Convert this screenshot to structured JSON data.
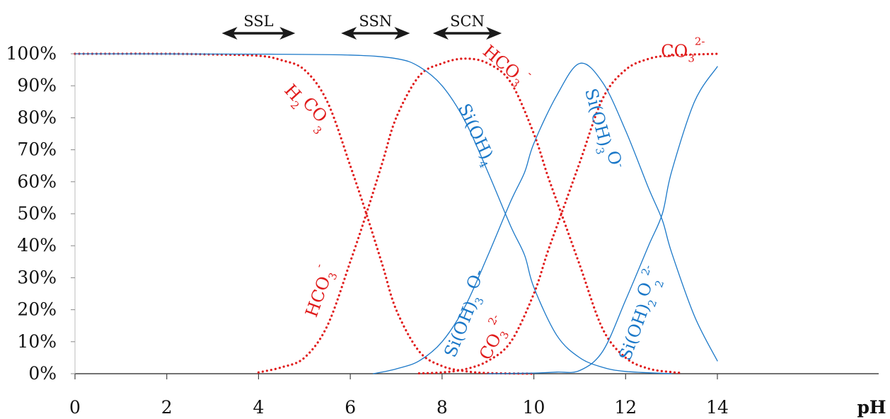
{
  "chart_data": {
    "type": "line",
    "xlabel": "pH",
    "ylabel": "",
    "xlim": [
      0,
      14
    ],
    "ylim": [
      0,
      100
    ],
    "x_ticks": [
      "0",
      "2",
      "4",
      "6",
      "8",
      "10",
      "12",
      "14"
    ],
    "y_ticks": [
      "0%",
      "10%",
      "20%",
      "30%",
      "40%",
      "50%",
      "60%",
      "70%",
      "80%",
      "90%",
      "100%"
    ],
    "regions": [
      {
        "label": "SSL",
        "x_start": 3.2,
        "x_end": 4.8
      },
      {
        "label": "SSN",
        "x_start": 5.8,
        "x_end": 7.3
      },
      {
        "label": "SCN",
        "x_start": 7.8,
        "x_end": 9.3
      }
    ],
    "series": [
      {
        "name": "H2CO3",
        "family": "carbonate",
        "color": "#e01b1b",
        "style": "dotted",
        "x": [
          0,
          2,
          3,
          4,
          4.5,
          5,
          5.5,
          6,
          6.35,
          6.7,
          7,
          7.5,
          8,
          8.5,
          9,
          10
        ],
        "y": [
          100,
          100,
          99.8,
          99.4,
          98,
          95,
          85,
          65,
          50,
          34,
          20,
          7,
          2.4,
          0.8,
          0.2,
          0
        ]
      },
      {
        "name": "HCO3-",
        "family": "carbonate",
        "color": "#e01b1b",
        "style": "dotted",
        "x": [
          4,
          4.5,
          5,
          5.5,
          6,
          6.35,
          6.7,
          7,
          7.5,
          8,
          8.5,
          9,
          9.5,
          10,
          10.3,
          10.6,
          11,
          11.5,
          12,
          12.5,
          13,
          13.2
        ],
        "y": [
          0.4,
          2,
          5,
          15,
          35,
          50,
          66,
          80,
          93,
          97,
          98.5,
          97,
          91,
          75,
          62,
          50,
          34,
          14,
          5,
          1.6,
          0.5,
          0.3
        ]
      },
      {
        "name": "CO3 2-",
        "family": "carbonate",
        "color": "#e01b1b",
        "style": "dotted",
        "x": [
          7.5,
          8,
          8.5,
          9,
          9.5,
          10,
          10.3,
          10.6,
          11,
          11.5,
          12,
          12.5,
          13,
          14
        ],
        "y": [
          0.1,
          0.4,
          1.4,
          4,
          10,
          25,
          38,
          50,
          66,
          86,
          95,
          98.4,
          99.5,
          100
        ]
      },
      {
        "name": "Si(OH)4",
        "family": "silicate",
        "color": "#1b78c8",
        "style": "solid",
        "x": [
          0,
          4,
          6,
          7,
          7.5,
          8,
          8.5,
          9,
          9.5,
          9.8,
          10,
          10.5,
          11,
          11.5,
          12,
          13
        ],
        "y": [
          100,
          99.9,
          99.6,
          98.5,
          96,
          90,
          79,
          63,
          46,
          37,
          27,
          12,
          5,
          2,
          0.7,
          0
        ]
      },
      {
        "name": "Si(OH)3O-",
        "family": "silicate",
        "color": "#1b78c8",
        "style": "solid",
        "x": [
          6.5,
          7,
          7.5,
          8,
          8.5,
          9,
          9.5,
          9.8,
          10,
          10.5,
          11,
          11.5,
          12,
          12.5,
          12.8,
          13,
          13.5,
          14
        ],
        "y": [
          0,
          1.5,
          4,
          10,
          21,
          37,
          54,
          63,
          72,
          87,
          97,
          91,
          76,
          58,
          48,
          38,
          18,
          4
        ]
      },
      {
        "name": "Si(OH)2O2 2-",
        "family": "silicate",
        "color": "#1b78c8",
        "style": "solid",
        "x": [
          9,
          10,
          10.5,
          11,
          11.5,
          12,
          12.5,
          12.8,
          13,
          13.5,
          14
        ],
        "y": [
          0,
          0.2,
          0.5,
          1,
          7,
          23,
          40,
          50,
          63,
          85,
          96
        ]
      }
    ],
    "annotations": [
      {
        "main": "H",
        "sub": "2",
        "rest": "CO",
        "sub2": "3",
        "sup": "",
        "color": "#e01b1b",
        "x": 4.95,
        "y": 82,
        "rotate": 48
      },
      {
        "main": "HCO",
        "sub": "3",
        "rest": "",
        "sub2": "",
        "sup": "-",
        "color": "#e01b1b",
        "x": 5.45,
        "y": 25,
        "rotate": -70
      },
      {
        "main": "HCO",
        "sub": "3",
        "rest": "",
        "sub2": "",
        "sup": "-",
        "color": "#e01b1b",
        "x": 9.3,
        "y": 95,
        "rotate": 40
      },
      {
        "main": "CO",
        "sub": "3",
        "rest": "",
        "sub2": "",
        "sup": "2-",
        "color": "#e01b1b",
        "x": 9.25,
        "y": 10,
        "rotate": -62
      },
      {
        "main": "CO",
        "sub": "3",
        "rest": "",
        "sub2": "",
        "sup": "2-",
        "color": "#e01b1b",
        "x": 13.25,
        "y": 99,
        "rotate": 0
      },
      {
        "main": "Si(OH)",
        "sub": "4",
        "rest": "",
        "sub2": "",
        "sup": "",
        "color": "#1b78c8",
        "x": 8.65,
        "y": 74,
        "rotate": 65
      },
      {
        "main": "Si(OH)",
        "sub": "3",
        "rest": " O-",
        "sub2": "",
        "sup": "",
        "color": "#1b78c8",
        "x": 8.65,
        "y": 18,
        "rotate": -68
      },
      {
        "main": "Si(OH)",
        "sub": "3",
        "rest": "O",
        "sub2": "",
        "sup": "-",
        "color": "#1b78c8",
        "x": 11.35,
        "y": 76,
        "rotate": 75
      },
      {
        "main": "Si(OH)",
        "sub": "2",
        "rest": "O",
        "sub2": "2",
        "sup": "2-",
        "color": "#1b78c8",
        "x": 12.45,
        "y": 18,
        "rotate": -70
      }
    ]
  }
}
